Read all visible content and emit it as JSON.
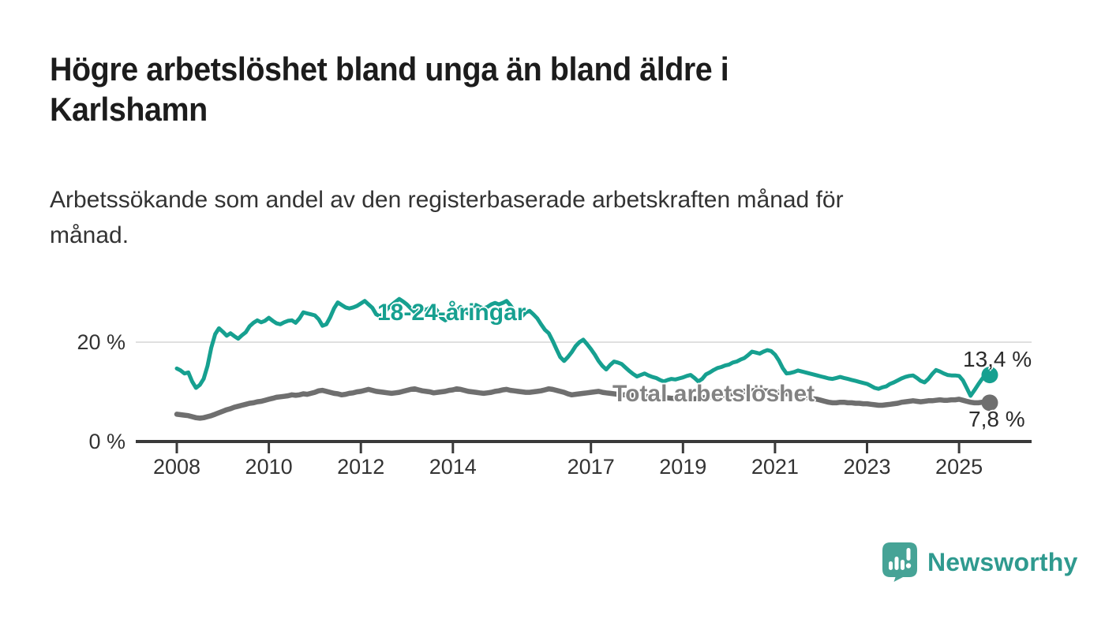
{
  "title": "Högre arbetslöshet bland unga än bland äldre i Karlshamn",
  "title_lines": [
    "Högre arbetslöshet bland unga än bland äldre i",
    "Karlshamn"
  ],
  "subtitle": "Arbetssökande som andel av den registerbaserade arbetskraften månad för månad.",
  "subtitle_lines": [
    "Arbetssökande som andel av den registerbaserade arbetskraften månad för",
    "månad."
  ],
  "branding": {
    "logo_text": "Newsworthy",
    "logo_icon": "newsworthy-speech-bubble-bar-chart",
    "icon_color": "#46a396",
    "text_color": "#2f9a8f"
  },
  "colors": {
    "young_line": "#16a090",
    "total_line": "#6f6f6f",
    "total_label": "#828282",
    "axis": "#3a3a3a",
    "grid": "#e0e0e0",
    "text": "#333333",
    "title": "#1c1c1c"
  },
  "chart_data": {
    "type": "line",
    "unit": "%",
    "title": "Högre arbetslöshet bland unga än bland äldre i Karlshamn",
    "subtitle": "Arbetssökande som andel av den registerbaserade arbetskraften månad för månad.",
    "grid": "single horizontal gridline at 20 %",
    "legend_position": "inline labels on lines",
    "y_axis": {
      "range": [
        0,
        30
      ],
      "ticks": [
        {
          "value": 0,
          "label": "0 %"
        },
        {
          "value": 20,
          "label": "20 %"
        }
      ]
    },
    "x_axis": {
      "range_years": [
        2007.1,
        2026.6
      ],
      "ticks": [
        2008,
        2010,
        2012,
        2014,
        2017,
        2019,
        2021,
        2023,
        2025
      ],
      "tick_labels": [
        "2008",
        "2010",
        "2012",
        "2014",
        "2017",
        "2019",
        "2021",
        "2023",
        "2025"
      ]
    },
    "series": [
      {
        "name": "18-24-åringar",
        "label": "18-24-åringar",
        "color": "#16a090",
        "end_label": "13,4 %",
        "end_value": 13.4,
        "start_year": 2008,
        "frequency": "monthly",
        "values": [
          14.7,
          14.3,
          13.7,
          13.9,
          12.1,
          10.8,
          11.4,
          12.6,
          15.2,
          18.9,
          21.6,
          22.8,
          22.1,
          21.3,
          21.8,
          21.2,
          20.7,
          21.4,
          22.0,
          23.2,
          23.9,
          24.4,
          24.0,
          24.3,
          24.9,
          24.3,
          23.8,
          23.6,
          24.0,
          24.3,
          24.4,
          23.9,
          24.8,
          26.0,
          25.8,
          25.6,
          25.4,
          24.6,
          23.3,
          23.6,
          25.0,
          26.8,
          28.0,
          27.5,
          27.0,
          26.8,
          27.0,
          27.3,
          27.8,
          28.3,
          27.6,
          26.9,
          25.6,
          25.2,
          25.9,
          26.8,
          27.5,
          28.1,
          28.7,
          28.2,
          27.6,
          26.8,
          26.1,
          26.4,
          26.8,
          26.5,
          26.9,
          27.2,
          26.2,
          24.9,
          24.4,
          25.0,
          25.5,
          26.3,
          27.1,
          26.4,
          25.8,
          26.6,
          27.5,
          27.1,
          26.8,
          27.1,
          27.6,
          27.9,
          27.6,
          27.9,
          28.3,
          27.4,
          26.3,
          25.6,
          25.2,
          26.0,
          26.3,
          25.6,
          24.8,
          23.6,
          22.5,
          21.8,
          20.3,
          18.6,
          17.0,
          16.2,
          17.0,
          18.0,
          19.2,
          20.0,
          20.5,
          19.6,
          18.6,
          17.5,
          16.2,
          15.2,
          14.5,
          15.4,
          16.1,
          15.9,
          15.6,
          14.9,
          14.2,
          13.6,
          13.1,
          13.4,
          13.7,
          13.3,
          13.0,
          12.8,
          12.4,
          12.1,
          12.4,
          12.6,
          12.5,
          12.7,
          12.9,
          13.2,
          13.4,
          12.8,
          12.1,
          12.6,
          13.5,
          13.9,
          14.4,
          14.8,
          15.0,
          15.3,
          15.5,
          15.9,
          16.1,
          16.5,
          16.8,
          17.4,
          18.1,
          17.9,
          17.7,
          18.1,
          18.4,
          18.2,
          17.5,
          16.3,
          14.8,
          13.7,
          13.8,
          14.0,
          14.3,
          14.1,
          13.9,
          13.7,
          13.5,
          13.3,
          13.1,
          12.9,
          12.7,
          12.6,
          12.8,
          13.0,
          12.8,
          12.6,
          12.4,
          12.2,
          12.0,
          11.8,
          11.6,
          11.2,
          10.8,
          10.6,
          10.9,
          11.1,
          11.6,
          11.9,
          12.3,
          12.7,
          13.0,
          13.2,
          13.3,
          12.8,
          12.2,
          11.9,
          12.6,
          13.6,
          14.4,
          14.1,
          13.7,
          13.4,
          13.3,
          13.3,
          13.2,
          12.3,
          10.8,
          9.2,
          10.3,
          11.5,
          12.6,
          13.6,
          13.4
        ]
      },
      {
        "name": "Total arbetslöshet",
        "label": "Total arbetslöshet",
        "color": "#6f6f6f",
        "end_label": "7,8 %",
        "end_value": 7.8,
        "start_year": 2008,
        "frequency": "monthly",
        "values": [
          5.5,
          5.4,
          5.3,
          5.2,
          5.0,
          4.8,
          4.7,
          4.8,
          5.0,
          5.2,
          5.5,
          5.8,
          6.1,
          6.4,
          6.6,
          6.9,
          7.1,
          7.3,
          7.5,
          7.7,
          7.8,
          8.0,
          8.1,
          8.3,
          8.5,
          8.7,
          8.9,
          9.0,
          9.1,
          9.2,
          9.4,
          9.3,
          9.4,
          9.6,
          9.5,
          9.7,
          9.9,
          10.2,
          10.3,
          10.1,
          9.9,
          9.7,
          9.6,
          9.4,
          9.5,
          9.7,
          9.8,
          10.0,
          10.1,
          10.3,
          10.5,
          10.3,
          10.1,
          10.0,
          9.9,
          9.8,
          9.7,
          9.8,
          9.9,
          10.1,
          10.3,
          10.5,
          10.6,
          10.4,
          10.2,
          10.1,
          10.0,
          9.8,
          9.9,
          10.0,
          10.1,
          10.3,
          10.4,
          10.6,
          10.5,
          10.3,
          10.1,
          10.0,
          9.9,
          9.8,
          9.7,
          9.8,
          9.9,
          10.1,
          10.2,
          10.4,
          10.5,
          10.3,
          10.2,
          10.1,
          10.0,
          9.9,
          9.9,
          10.0,
          10.1,
          10.2,
          10.4,
          10.6,
          10.5,
          10.3,
          10.1,
          9.9,
          9.6,
          9.4,
          9.5,
          9.6,
          9.7,
          9.8,
          9.9,
          10.0,
          10.1,
          9.9,
          9.8,
          9.7,
          9.6,
          9.5,
          9.4,
          9.4,
          9.3,
          9.3,
          9.2,
          9.2,
          9.1,
          9.0,
          9.0,
          8.9,
          8.9,
          8.8,
          8.8,
          8.7,
          8.7,
          8.7,
          8.7,
          8.7,
          8.6,
          8.6,
          8.7,
          8.8,
          8.9,
          9.0,
          9.0,
          9.1,
          9.2,
          9.4,
          9.5,
          9.7,
          9.9,
          10.0,
          10.1,
          10.2,
          10.2,
          10.3,
          10.3,
          10.2,
          10.2,
          10.1,
          10.0,
          9.9,
          9.7,
          9.6,
          9.5,
          9.3,
          9.2,
          9.1,
          8.9,
          8.8,
          8.6,
          8.5,
          8.3,
          8.1,
          7.9,
          7.8,
          7.8,
          7.9,
          7.9,
          7.8,
          7.8,
          7.7,
          7.7,
          7.6,
          7.6,
          7.5,
          7.4,
          7.3,
          7.3,
          7.4,
          7.5,
          7.6,
          7.7,
          7.9,
          8.0,
          8.1,
          8.2,
          8.1,
          8.0,
          8.1,
          8.2,
          8.2,
          8.3,
          8.4,
          8.3,
          8.3,
          8.4,
          8.4,
          8.5,
          8.3,
          8.1,
          7.9,
          7.8,
          7.8,
          7.9,
          7.9,
          7.8
        ]
      }
    ]
  }
}
